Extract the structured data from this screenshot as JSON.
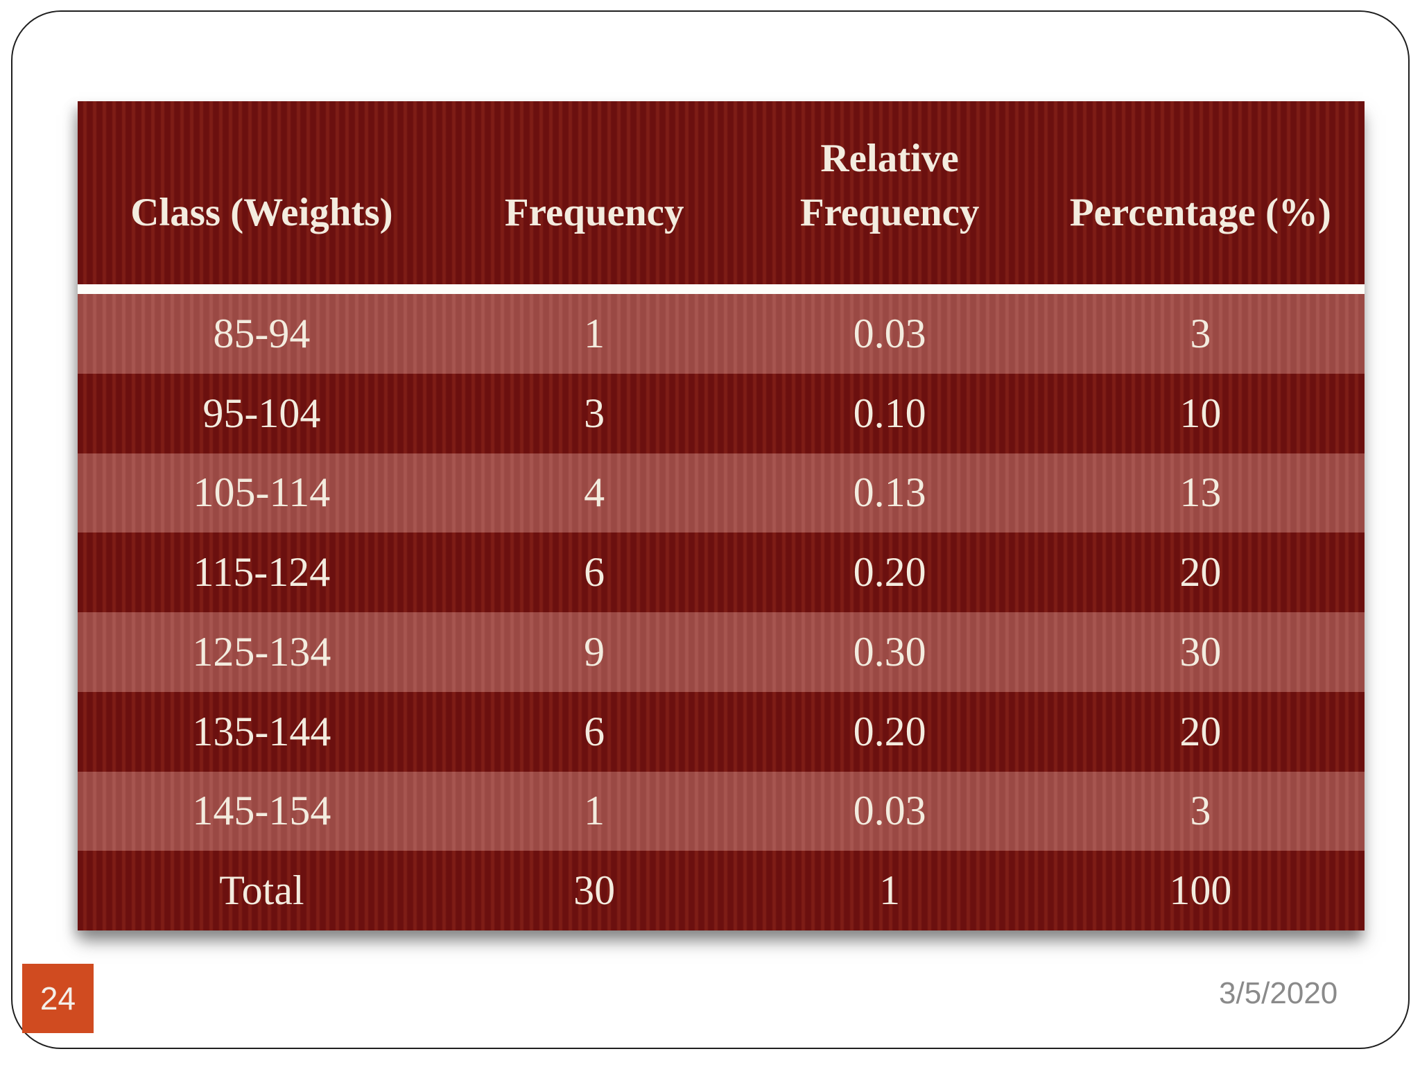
{
  "slide": {
    "page_number": "24",
    "date": "3/5/2020"
  },
  "colors": {
    "maroon_dark": "#6b100f",
    "maroon_light": "#9a4944",
    "header_text": "#f3ecdf",
    "badge_orange": "#d04b20",
    "date_gray": "#8a8a8a",
    "separator_white": "#fdfdf9"
  },
  "table": {
    "headers": {
      "class": "Class (Weights)",
      "frequency": "Frequency",
      "relative_frequency": "Relative Frequency",
      "percentage": "Percentage (%)"
    },
    "rows": [
      {
        "class": "85-94",
        "frequency": "1",
        "relative_frequency": "0.03",
        "percentage": "3"
      },
      {
        "class": "95-104",
        "frequency": "3",
        "relative_frequency": "0.10",
        "percentage": "10"
      },
      {
        "class": "105-114",
        "frequency": "4",
        "relative_frequency": "0.13",
        "percentage": "13"
      },
      {
        "class": "115-124",
        "frequency": "6",
        "relative_frequency": "0.20",
        "percentage": "20"
      },
      {
        "class": "125-134",
        "frequency": "9",
        "relative_frequency": "0.30",
        "percentage": "30"
      },
      {
        "class": "135-144",
        "frequency": "6",
        "relative_frequency": "0.20",
        "percentage": "20"
      },
      {
        "class": "145-154",
        "frequency": "1",
        "relative_frequency": "0.03",
        "percentage": "3"
      },
      {
        "class": "Total",
        "frequency": "30",
        "relative_frequency": "1",
        "percentage": "100"
      }
    ]
  }
}
